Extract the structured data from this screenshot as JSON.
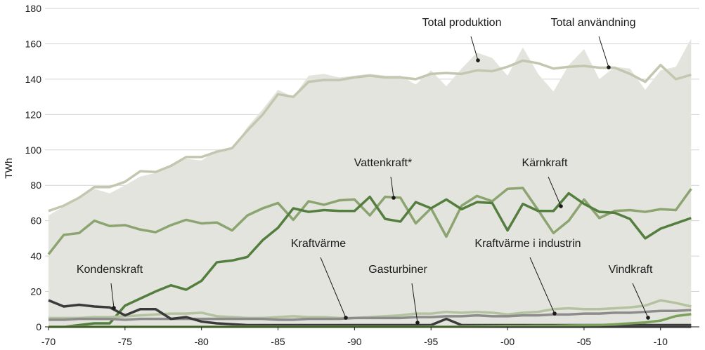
{
  "chart_data": {
    "type": "line",
    "ylabel": "TWh",
    "x": [
      1970,
      1971,
      1972,
      1973,
      1974,
      1975,
      1976,
      1977,
      1978,
      1979,
      1980,
      1981,
      1982,
      1983,
      1984,
      1985,
      1986,
      1987,
      1988,
      1989,
      1990,
      1991,
      1992,
      1993,
      1994,
      1995,
      1996,
      1997,
      1998,
      1999,
      2000,
      2001,
      2002,
      2003,
      2004,
      2005,
      2006,
      2007,
      2008,
      2009,
      2010,
      2011,
      2012
    ],
    "xlim": [
      1970,
      2012.4
    ],
    "xticks": [
      {
        "value": 1970,
        "label": "-70"
      },
      {
        "value": 1975,
        "label": "-75"
      },
      {
        "value": 1980,
        "label": "-80"
      },
      {
        "value": 1985,
        "label": "-85"
      },
      {
        "value": 1990,
        "label": "-90"
      },
      {
        "value": 1995,
        "label": "-95"
      },
      {
        "value": 2000,
        "label": "-00"
      },
      {
        "value": 2005,
        "label": "-05"
      },
      {
        "value": 2010,
        "label": "-10"
      }
    ],
    "ylim": [
      0,
      180
    ],
    "yticks": [
      0,
      20,
      40,
      60,
      80,
      100,
      120,
      140,
      160,
      180
    ],
    "grid": true,
    "series": [
      {
        "name": "Total produktion",
        "style": "area",
        "color": "#e4e4df",
        "values": [
          63,
          68,
          74,
          78,
          75.5,
          80,
          85,
          87,
          91,
          95,
          94,
          100,
          100,
          113,
          123,
          134,
          130,
          142,
          143,
          141,
          142,
          143,
          142,
          142,
          137,
          145,
          136,
          146,
          155,
          152,
          142,
          158,
          143,
          133,
          148,
          157,
          140,
          147,
          146,
          134,
          145,
          147,
          163
        ]
      },
      {
        "name": "Total användning",
        "style": "line",
        "color": "#c2c8b0",
        "values": [
          65.5,
          68.5,
          73,
          79,
          79,
          82,
          88,
          87.5,
          91,
          96,
          96,
          99,
          101,
          111,
          120,
          131.5,
          130,
          138.5,
          139.5,
          139.5,
          141,
          142,
          141,
          141,
          140,
          143,
          143.5,
          143,
          145,
          144.5,
          147,
          150.5,
          149,
          146,
          147,
          147.5,
          146.5,
          146.5,
          143,
          138.5,
          148,
          140,
          142.5
        ]
      },
      {
        "name": "Vattenkraft*",
        "style": "line",
        "color": "#8ba470",
        "values": [
          41,
          52,
          53,
          60,
          57,
          57.5,
          55,
          53.5,
          57.5,
          60.5,
          58.5,
          59,
          54.5,
          63,
          67,
          70,
          60.5,
          71,
          69,
          71.5,
          72,
          63,
          73.5,
          73,
          58.5,
          67,
          51,
          68.5,
          74,
          71,
          78,
          78.5,
          66,
          53,
          60,
          72,
          61.5,
          65.5,
          66,
          65,
          66.5,
          66,
          78
        ]
      },
      {
        "name": "Kärnkraft",
        "style": "line",
        "color": "#547e3e",
        "values": [
          0,
          0,
          1,
          2,
          2,
          12,
          16,
          20,
          23.5,
          21,
          26,
          36.5,
          37.5,
          39.5,
          49,
          56,
          67,
          65,
          66,
          65.5,
          65.5,
          73.5,
          61,
          59.5,
          70.5,
          67,
          72,
          66.5,
          70.5,
          70,
          54.5,
          69.5,
          65.5,
          65.5,
          75.5,
          69.5,
          65,
          64.5,
          61,
          50,
          55.5,
          58.5,
          61.5
        ]
      },
      {
        "name": "Kraftvärme",
        "style": "line",
        "color": "#b3c39f",
        "values": [
          5,
          5,
          5,
          5.5,
          5.5,
          6,
          6.5,
          7,
          7.5,
          7.5,
          8,
          6,
          5.5,
          5,
          5,
          5.5,
          6,
          5.5,
          5.5,
          5,
          5,
          5.5,
          6,
          6.5,
          7.5,
          7.5,
          8.5,
          8,
          8.5,
          8,
          7,
          8,
          8.5,
          10,
          10.5,
          10,
          10,
          10.5,
          11,
          12,
          15,
          13.5,
          11.5
        ]
      },
      {
        "name": "Kraftvärme i industrin",
        "style": "line",
        "color": "#8c8c8c",
        "values": [
          4,
          4,
          4.5,
          4.5,
          4.5,
          4,
          4.5,
          4.5,
          4.5,
          4.5,
          4.5,
          4.5,
          4.5,
          4.5,
          4.5,
          4,
          4,
          4.5,
          4.5,
          4.5,
          5,
          5,
          5,
          5,
          5.5,
          5.5,
          6,
          6,
          6.5,
          6,
          6,
          6.5,
          6.5,
          7,
          7,
          7.5,
          7.5,
          8,
          8,
          8.5,
          9,
          9,
          9.5
        ]
      },
      {
        "name": "Kondenskraft",
        "style": "line",
        "color": "#3a3a3a",
        "values": [
          15,
          11.5,
          12.5,
          11.5,
          11,
          6.5,
          10,
          10,
          4.5,
          5.5,
          3,
          2,
          1.5,
          1,
          1,
          1,
          1,
          1,
          1,
          1,
          1,
          1,
          1,
          1,
          1,
          1,
          4.5,
          1,
          1,
          1,
          1,
          1,
          1,
          1,
          1,
          1,
          1,
          1,
          1,
          1,
          1,
          1,
          1
        ]
      },
      {
        "name": "Gasturbiner",
        "style": "line",
        "color": "#5c5c5c",
        "values": [
          0,
          0,
          0,
          0,
          0,
          0,
          0,
          0,
          0,
          0,
          0,
          0,
          0,
          0,
          0,
          0,
          0,
          0,
          0,
          0,
          0,
          0,
          0,
          0,
          0,
          0,
          0,
          0,
          0,
          0,
          0,
          0,
          0,
          0,
          0,
          0,
          0,
          0,
          0,
          0,
          0,
          0,
          0
        ]
      },
      {
        "name": "Vindkraft",
        "style": "line",
        "color": "#7aa05a",
        "values": [
          0,
          0,
          0,
          0,
          0,
          0,
          0,
          0,
          0,
          0,
          0,
          0,
          0,
          0,
          0,
          0,
          0,
          0,
          0,
          0,
          0,
          0,
          0,
          0,
          0,
          0.1,
          0.1,
          0.2,
          0.3,
          0.4,
          0.5,
          0.5,
          0.6,
          0.6,
          0.8,
          0.9,
          1,
          1.4,
          2,
          2.5,
          3.5,
          6.1,
          7.2
        ]
      }
    ]
  }
}
